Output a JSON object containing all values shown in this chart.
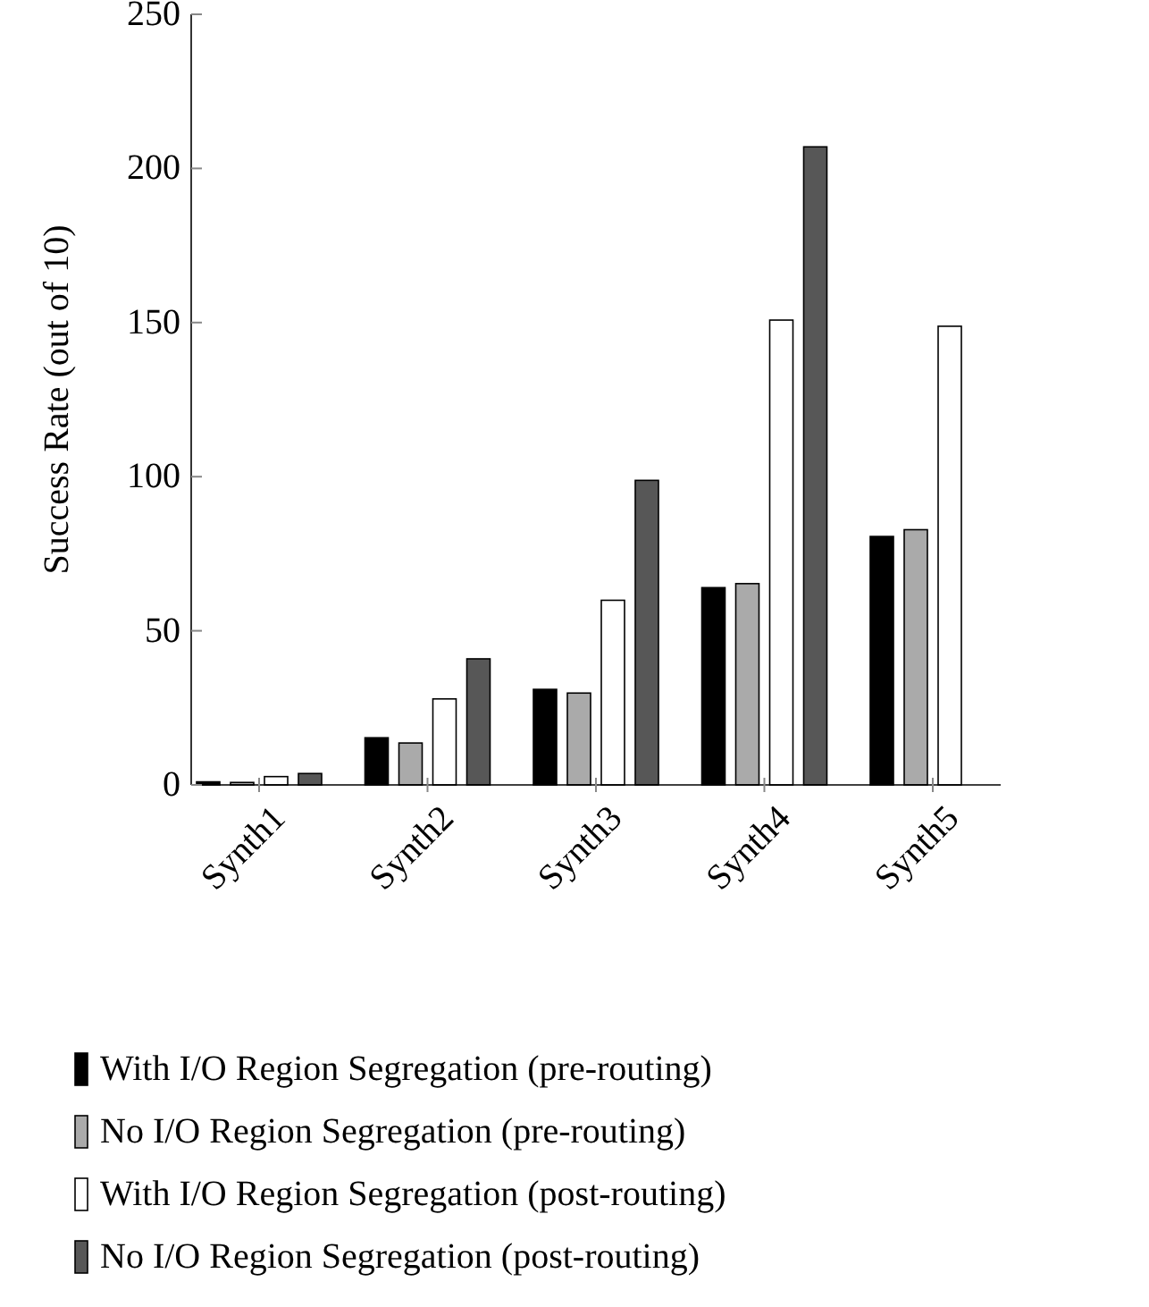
{
  "chart_data": {
    "type": "bar",
    "ylabel": "Success Rate (out of 10)",
    "categories": [
      "Synth1",
      "Synth2",
      "Synth3",
      "Synth4",
      "Synth5"
    ],
    "series": [
      {
        "name": "With I/O Region Segregation (pre-routing)",
        "color": "#000000",
        "values": [
          1,
          15.3,
          31,
          64,
          80.6
        ]
      },
      {
        "name": "No I/O Region Segregation (pre-routing)",
        "color": "#aaaaaa",
        "values": [
          0.8,
          13.6,
          29.8,
          65.3,
          82.8
        ]
      },
      {
        "name": "With I/O Region Segregation (post-routing)",
        "color": "#ffffff",
        "values": [
          2.7,
          27.9,
          59.9,
          150.8,
          148.8
        ]
      },
      {
        "name": "No I/O Region Segregation (post-routing)",
        "color": "#575757",
        "values": [
          3.7,
          40.9,
          98.8,
          207,
          null
        ]
      }
    ],
    "ylim": [
      0,
      250
    ],
    "yticks": [
      0,
      50,
      100,
      150,
      200,
      250
    ],
    "grid": false,
    "legend": "bottom"
  }
}
